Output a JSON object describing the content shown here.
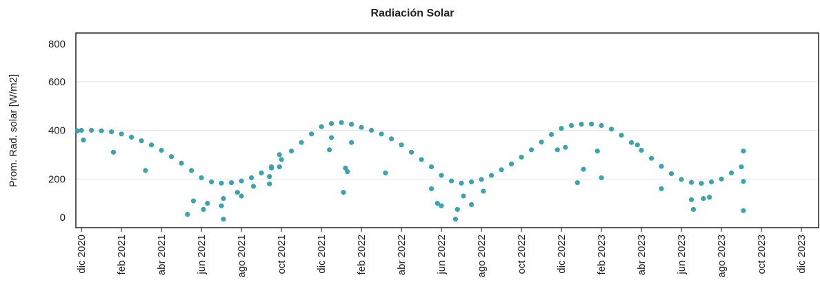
{
  "chart_data": {
    "type": "scatter",
    "title": "Radiación Solar",
    "y_label": "Prom. Rad. solar [W/m2]",
    "color": "#3ba3ad",
    "grid": true,
    "xlim": [
      -0.28,
      36.86
    ],
    "xticks": [
      {
        "value": 0,
        "label": "dic 2020"
      },
      {
        "value": 2,
        "label": "feb 2021"
      },
      {
        "value": 4,
        "label": "abr 2021"
      },
      {
        "value": 6,
        "label": "jun 2021"
      },
      {
        "value": 8,
        "label": "ago 2021"
      },
      {
        "value": 10,
        "label": "oct 2021"
      },
      {
        "value": 12,
        "label": "dic 2021"
      },
      {
        "value": 14,
        "label": "feb 2022"
      },
      {
        "value": 16,
        "label": "abr 2022"
      },
      {
        "value": 18,
        "label": "jun 2022"
      },
      {
        "value": 20,
        "label": "ago 2022"
      },
      {
        "value": 22,
        "label": "oct 2022"
      },
      {
        "value": 24,
        "label": "dic 2022"
      },
      {
        "value": 26,
        "label": "feb 2023"
      },
      {
        "value": 28,
        "label": "abr 2023"
      },
      {
        "value": 30,
        "label": "jun 2023"
      },
      {
        "value": 32,
        "label": "ago 2023"
      },
      {
        "value": 34,
        "label": "oct 2023"
      },
      {
        "value": 36,
        "label": "dic 2023"
      }
    ],
    "ylim": [
      0,
      800
    ],
    "yticks": [
      0,
      200,
      400,
      600,
      800
    ],
    "x": [
      -0.2,
      0,
      0.5,
      1,
      1.5,
      2,
      2.5,
      3,
      3.5,
      4,
      4.5,
      5,
      5.5,
      6,
      6.5,
      7,
      7.5,
      8,
      8.5,
      9,
      9.5,
      10,
      10.5,
      11,
      11.5,
      12,
      12.5,
      13,
      13.5,
      14,
      14.5,
      15,
      15.5,
      16,
      16.5,
      17,
      17.5,
      18,
      18.5,
      19,
      19.5,
      20,
      20.5,
      21,
      21.5,
      22,
      22.5,
      23,
      23.5,
      24,
      24.5,
      25,
      25.5,
      26,
      26.5,
      27,
      27.5,
      28,
      28.5,
      29,
      29.5,
      30,
      30.5,
      31,
      31.5,
      32,
      32.5,
      33,
      1.6,
      0.1,
      3.2,
      5.3,
      5.6,
      6.1,
      6.3,
      7,
      7.1,
      7.1,
      7.8,
      8,
      8.6,
      9.4,
      9.5,
      9.9,
      9.9,
      9.4,
      12.4,
      12.5,
      13.1,
      13.2,
      13.3,
      13.5,
      15.2,
      17.5,
      17.8,
      18,
      18.7,
      18.8,
      19.1,
      19.5,
      20.1,
      23.8,
      24.2,
      24.8,
      25.1,
      26,
      25.8,
      27.8,
      29,
      30.5,
      30.6,
      31.1,
      31.4,
      33.1,
      33.1,
      33.1
    ],
    "values": [
      398,
      400,
      400,
      398,
      394,
      385,
      372,
      357,
      340,
      318,
      292,
      265,
      235,
      205,
      188,
      183,
      185,
      192,
      205,
      225,
      250,
      280,
      315,
      350,
      385,
      415,
      428,
      432,
      425,
      412,
      400,
      385,
      365,
      340,
      310,
      280,
      250,
      215,
      192,
      183,
      188,
      198,
      215,
      238,
      262,
      290,
      320,
      352,
      383,
      408,
      420,
      425,
      426,
      420,
      405,
      380,
      350,
      318,
      285,
      252,
      222,
      198,
      186,
      182,
      188,
      200,
      225,
      250,
      310,
      360,
      235,
      55,
      110,
      75,
      100,
      90,
      35,
      120,
      145,
      130,
      170,
      180,
      245,
      250,
      300,
      210,
      320,
      370,
      145,
      245,
      230,
      350,
      225,
      160,
      100,
      90,
      35,
      75,
      130,
      95,
      150,
      320,
      330,
      185,
      240,
      205,
      315,
      340,
      160,
      115,
      75,
      120,
      125,
      190,
      70,
      315
    ]
  }
}
